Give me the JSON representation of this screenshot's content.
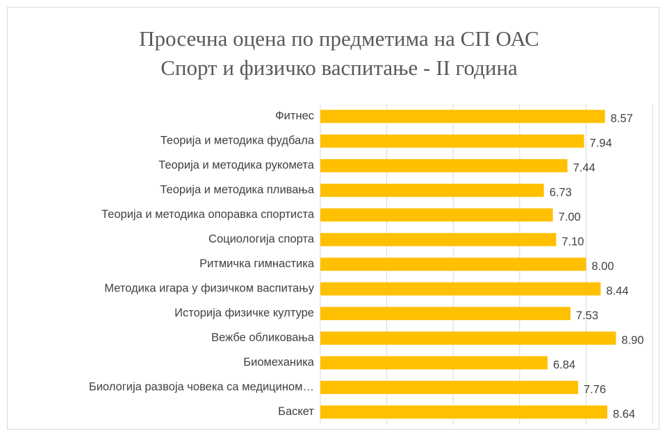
{
  "chart_data": {
    "type": "bar",
    "orientation": "horizontal",
    "title": [
      "Просечна оцена по предметима на СП ОАС",
      "Спорт и физичко васпитање - II година"
    ],
    "categories": [
      "Фитнес",
      "Теорија и методика фудбала",
      "Теорија и методика рукомета",
      "Теорија и методика пливања",
      "Теорија и методика опоравка спортиста",
      "Социологија спорта",
      "Ритмичка гимнастика",
      "Методика игара у физичком васпитању",
      "Историја физичке културе",
      "Вежбе обликовања",
      "Биомеханика",
      "Биологија развоја човека са медицином…",
      "Баскет"
    ],
    "values": [
      8.57,
      7.94,
      7.44,
      6.73,
      7.0,
      7.1,
      8.0,
      8.44,
      7.53,
      8.9,
      6.84,
      7.76,
      8.64
    ],
    "value_labels": [
      "8.57",
      "7.94",
      "7.44",
      "6.73",
      "7.00",
      "7.10",
      "8.00",
      "8.44",
      "7.53",
      "8.90",
      "6.84",
      "7.76",
      "8.64"
    ],
    "color": "#ffc000",
    "xlim": [
      0,
      10
    ],
    "xticks": [
      0,
      2,
      4,
      6,
      8,
      10
    ],
    "grid": true
  }
}
